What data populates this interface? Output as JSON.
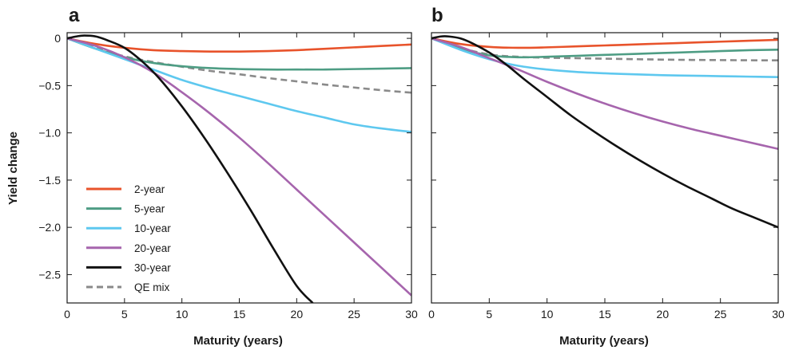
{
  "chart_data": [
    {
      "type": "line",
      "panel_label": "a",
      "xlabel": "Maturity (years)",
      "ylabel": "Yield change",
      "xlim": [
        0,
        30
      ],
      "ylim": [
        -2.8,
        0.06
      ],
      "xticks": [
        0,
        5,
        10,
        15,
        20,
        25,
        30
      ],
      "xtick_labels": [
        "0",
        "5",
        "10",
        "15",
        "20",
        "25",
        "30"
      ],
      "yticks": [
        0,
        -0.5,
        -1.0,
        -1.5,
        -2.0,
        -2.5
      ],
      "ytick_labels": [
        "0",
        "−0.5",
        "−1.0",
        "−1.5",
        "−2.0",
        "−2.5"
      ],
      "grid": false,
      "legend_position": "lower-left",
      "series": [
        {
          "name": "2-year",
          "color": "#e8532b",
          "dash": "solid",
          "x": [
            0,
            2.5,
            5,
            7.5,
            10,
            12.5,
            15,
            17.5,
            20,
            22.5,
            25,
            27.5,
            30
          ],
          "y": [
            0,
            -0.06,
            -0.1,
            -0.125,
            -0.135,
            -0.14,
            -0.14,
            -0.135,
            -0.125,
            -0.11,
            -0.095,
            -0.08,
            -0.065
          ]
        },
        {
          "name": "5-year",
          "color": "#4e9d84",
          "dash": "solid",
          "x": [
            0,
            2.5,
            5,
            7.5,
            10,
            12.5,
            15,
            17.5,
            20,
            22.5,
            25,
            27.5,
            30
          ],
          "y": [
            0,
            -0.11,
            -0.2,
            -0.26,
            -0.295,
            -0.315,
            -0.325,
            -0.33,
            -0.33,
            -0.33,
            -0.325,
            -0.32,
            -0.315
          ]
        },
        {
          "name": "10-year",
          "color": "#5ec8ef",
          "dash": "solid",
          "x": [
            0,
            2.5,
            5,
            7.5,
            10,
            12.5,
            15,
            17.5,
            20,
            22.5,
            25,
            27.5,
            30
          ],
          "y": [
            0,
            -0.11,
            -0.22,
            -0.33,
            -0.44,
            -0.53,
            -0.61,
            -0.69,
            -0.77,
            -0.84,
            -0.91,
            -0.955,
            -0.99
          ]
        },
        {
          "name": "20-year",
          "color": "#a665ad",
          "dash": "solid",
          "x": [
            0,
            2.5,
            5,
            7.5,
            10,
            12.5,
            15,
            17.5,
            20,
            22.5,
            25,
            27.5,
            30
          ],
          "y": [
            0,
            -0.08,
            -0.2,
            -0.36,
            -0.57,
            -0.8,
            -1.05,
            -1.32,
            -1.6,
            -1.88,
            -2.16,
            -2.44,
            -2.72
          ]
        },
        {
          "name": "30-year",
          "color": "#111111",
          "dash": "solid",
          "x": [
            0,
            0.8,
            1.5,
            2.5,
            3.5,
            5,
            6.5,
            8,
            10,
            12,
            14,
            16,
            18,
            20,
            21.4
          ],
          "y": [
            0,
            0.02,
            0.03,
            0.02,
            -0.02,
            -0.1,
            -0.24,
            -0.42,
            -0.72,
            -1.06,
            -1.43,
            -1.82,
            -2.23,
            -2.62,
            -2.8
          ]
        },
        {
          "name": "QE mix",
          "color": "#8a8a8a",
          "dash": "dashed",
          "x": [
            0,
            2.5,
            5,
            7.5,
            10,
            12.5,
            15,
            17.5,
            20,
            22.5,
            25,
            27.5,
            30
          ],
          "y": [
            0,
            -0.1,
            -0.19,
            -0.25,
            -0.3,
            -0.345,
            -0.38,
            -0.42,
            -0.455,
            -0.49,
            -0.52,
            -0.55,
            -0.575
          ]
        }
      ]
    },
    {
      "type": "line",
      "panel_label": "b",
      "xlabel": "Maturity (years)",
      "ylabel": "",
      "xlim": [
        0,
        30
      ],
      "ylim": [
        -2.8,
        0.06
      ],
      "xticks": [
        0,
        5,
        10,
        15,
        20,
        25,
        30
      ],
      "xtick_labels": [
        "0",
        "5",
        "10",
        "15",
        "20",
        "25",
        "30"
      ],
      "yticks": [
        0,
        -0.5,
        -1.0,
        -1.5,
        -2.0,
        -2.5
      ],
      "ytick_labels": [],
      "grid": false,
      "series": [
        {
          "name": "2-year",
          "color": "#e8532b",
          "dash": "solid",
          "x": [
            0,
            2.5,
            5,
            7.5,
            10,
            12.5,
            15,
            17.5,
            20,
            22.5,
            25,
            27.5,
            30
          ],
          "y": [
            0,
            -0.06,
            -0.09,
            -0.1,
            -0.095,
            -0.085,
            -0.075,
            -0.065,
            -0.055,
            -0.045,
            -0.035,
            -0.025,
            -0.015
          ]
        },
        {
          "name": "5-year",
          "color": "#4e9d84",
          "dash": "solid",
          "x": [
            0,
            2.5,
            5,
            7.5,
            10,
            12.5,
            15,
            17.5,
            20,
            22.5,
            25,
            27.5,
            30
          ],
          "y": [
            0,
            -0.11,
            -0.18,
            -0.2,
            -0.195,
            -0.185,
            -0.175,
            -0.165,
            -0.155,
            -0.145,
            -0.135,
            -0.125,
            -0.12
          ]
        },
        {
          "name": "10-year",
          "color": "#5ec8ef",
          "dash": "solid",
          "x": [
            0,
            2.5,
            5,
            7.5,
            10,
            12.5,
            15,
            17.5,
            20,
            22.5,
            25,
            27.5,
            30
          ],
          "y": [
            0,
            -0.12,
            -0.22,
            -0.29,
            -0.33,
            -0.355,
            -0.37,
            -0.38,
            -0.39,
            -0.395,
            -0.4,
            -0.405,
            -0.41
          ]
        },
        {
          "name": "20-year",
          "color": "#a665ad",
          "dash": "solid",
          "x": [
            0,
            2.5,
            5,
            7.5,
            10,
            12.5,
            15,
            17.5,
            20,
            22.5,
            25,
            27.5,
            30
          ],
          "y": [
            0,
            -0.09,
            -0.21,
            -0.33,
            -0.46,
            -0.58,
            -0.69,
            -0.79,
            -0.88,
            -0.96,
            -1.03,
            -1.1,
            -1.17
          ]
        },
        {
          "name": "30-year",
          "color": "#111111",
          "dash": "solid",
          "x": [
            0,
            0.8,
            1.5,
            2.5,
            3.5,
            5,
            6.5,
            8,
            10,
            12,
            14,
            16,
            18,
            20,
            22,
            24,
            26,
            28,
            30
          ],
          "y": [
            0,
            0.02,
            0.02,
            0.0,
            -0.05,
            -0.15,
            -0.28,
            -0.43,
            -0.62,
            -0.81,
            -0.98,
            -1.14,
            -1.29,
            -1.43,
            -1.56,
            -1.68,
            -1.8,
            -1.9,
            -2.0
          ]
        },
        {
          "name": "QE mix",
          "color": "#8a8a8a",
          "dash": "dashed",
          "x": [
            0,
            2.5,
            5,
            7.5,
            10,
            12.5,
            15,
            17.5,
            20,
            22.5,
            25,
            27.5,
            30
          ],
          "y": [
            0,
            -0.1,
            -0.17,
            -0.195,
            -0.205,
            -0.21,
            -0.215,
            -0.22,
            -0.225,
            -0.228,
            -0.23,
            -0.232,
            -0.233
          ]
        }
      ]
    }
  ]
}
